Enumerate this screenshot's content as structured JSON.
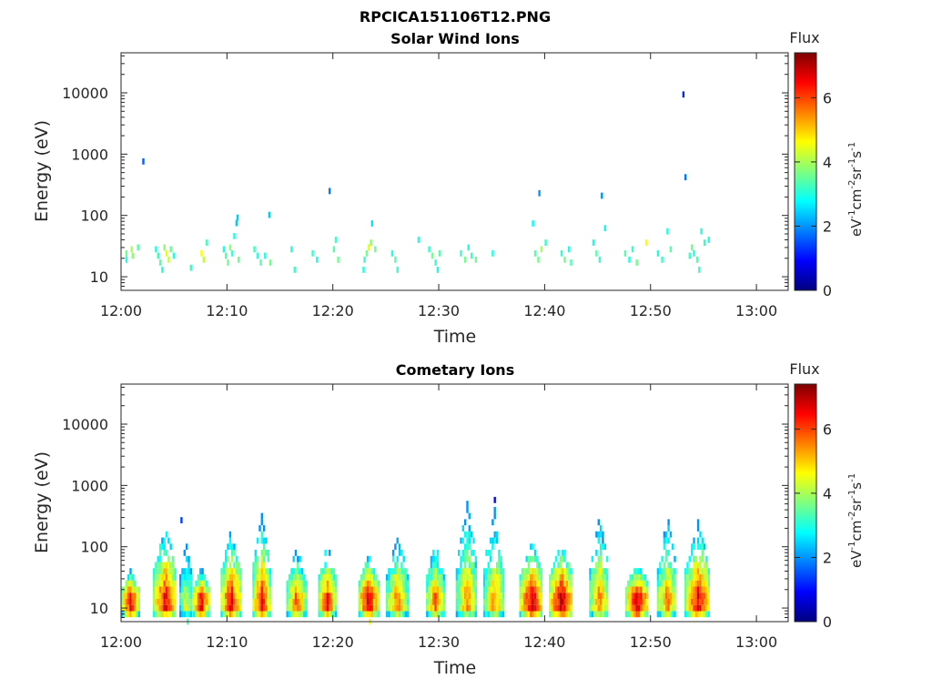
{
  "figure": {
    "title": "RPCICA151106T12.PNG"
  },
  "colormap": [
    "#00007f",
    "#0000ff",
    "#007fff",
    "#00ffff",
    "#7fff7f",
    "#ffff00",
    "#ff7f00",
    "#ff0000",
    "#7f0000"
  ],
  "chart_data": [
    {
      "type": "heatmap",
      "title": "Solar Wind Ions",
      "xlabel": "Time",
      "ylabel": "Energy (eV)",
      "x_ticks": [
        "12:00",
        "12:10",
        "12:20",
        "12:30",
        "12:40",
        "12:50",
        "13:00"
      ],
      "x_range": [
        "12:00",
        "13:03"
      ],
      "y_scale": "log",
      "y_ticks": [
        "10",
        "100",
        "1000",
        "10000"
      ],
      "y_range": [
        6,
        45000
      ],
      "colorbar": {
        "label": "Flux",
        "unit_base": "eV",
        "unit_e1": "-1",
        "unit_cm": "cm",
        "unit_e2": "-2",
        "unit_sr": "sr",
        "unit_e3": "-1",
        "unit_s": "s",
        "unit_e4": "-1",
        "ticks": [
          "0",
          "2",
          "4",
          "6"
        ],
        "range": [
          0,
          7.4
        ]
      },
      "cells": [
        [
          "12:00.4",
          24,
          3.6
        ],
        [
          "12:00.4",
          19,
          3.0
        ],
        [
          "12:00.9",
          28,
          4.0
        ],
        [
          "12:01.0",
          22,
          3.8
        ],
        [
          "12:01.5",
          30,
          3.4
        ],
        [
          "12:02.0",
          760,
          1.6
        ],
        [
          "12:03.2",
          28,
          3.0
        ],
        [
          "12:03.4",
          22,
          3.2
        ],
        [
          "12:03.6",
          17,
          3.4
        ],
        [
          "12:03.8",
          13,
          3.0
        ],
        [
          "12:04.0",
          30,
          3.8
        ],
        [
          "12:04.2",
          24,
          4.4
        ],
        [
          "12:04.4",
          19,
          4.2
        ],
        [
          "12:04.6",
          28,
          3.6
        ],
        [
          "12:04.9",
          22,
          3.0
        ],
        [
          "12:06.5",
          14,
          3.2
        ],
        [
          "12:07.5",
          24,
          4.6
        ],
        [
          "12:07.7",
          19,
          4.2
        ],
        [
          "12:08.0",
          36,
          3.2
        ],
        [
          "12:09.6",
          28,
          3.0
        ],
        [
          "12:09.8",
          22,
          3.4
        ],
        [
          "12:10.0",
          17,
          3.6
        ],
        [
          "12:10.2",
          30,
          3.8
        ],
        [
          "12:10.4",
          24,
          3.2
        ],
        [
          "12:10.6",
          46,
          3.0
        ],
        [
          "12:10.8",
          75,
          2.4
        ],
        [
          "12:11.0",
          19,
          3.6
        ],
        [
          "12:10.9",
          92,
          2.4
        ],
        [
          "12:12.5",
          28,
          3.2
        ],
        [
          "12:12.8",
          22,
          3.0
        ],
        [
          "12:13.1",
          17,
          3.4
        ],
        [
          "12:13.5",
          22,
          3.0
        ],
        [
          "12:13.9",
          102,
          2.4
        ],
        [
          "12:14.0",
          17,
          3.6
        ],
        [
          "12:16.0",
          28,
          3.0
        ],
        [
          "12:16.3",
          13,
          3.2
        ],
        [
          "12:18.0",
          24,
          3.2
        ],
        [
          "12:18.4",
          19,
          3.0
        ],
        [
          "12:19.6",
          250,
          1.8
        ],
        [
          "12:20.0",
          28,
          3.4
        ],
        [
          "12:20.2",
          40,
          3.2
        ],
        [
          "12:20.4",
          19,
          3.6
        ],
        [
          "12:22.9",
          19,
          3.2
        ],
        [
          "12:23.1",
          24,
          3.6
        ],
        [
          "12:23.3",
          30,
          4.4
        ],
        [
          "12:23.5",
          36,
          3.8
        ],
        [
          "12:23.6",
          74,
          2.6
        ],
        [
          "12:23.9",
          28,
          3.6
        ],
        [
          "12:22.8",
          13,
          3.0
        ],
        [
          "12:25.5",
          24,
          3.0
        ],
        [
          "12:25.8",
          19,
          3.4
        ],
        [
          "12:26.0",
          13,
          3.2
        ],
        [
          "12:28.0",
          40,
          3.0
        ],
        [
          "12:29.0",
          28,
          3.2
        ],
        [
          "12:29.3",
          22,
          3.6
        ],
        [
          "12:29.6",
          17,
          3.2
        ],
        [
          "12:29.8",
          13,
          3.0
        ],
        [
          "12:30.0",
          24,
          3.4
        ],
        [
          "12:32.0",
          24,
          3.2
        ],
        [
          "12:32.4",
          19,
          3.6
        ],
        [
          "12:32.7",
          30,
          3.0
        ],
        [
          "12:33.0",
          22,
          3.2
        ],
        [
          "12:33.4",
          19,
          3.6
        ],
        [
          "12:35.0",
          24,
          3.0
        ],
        [
          "12:38.8",
          74,
          2.8
        ],
        [
          "12:39.0",
          24,
          3.4
        ],
        [
          "12:39.3",
          19,
          3.6
        ],
        [
          "12:39.6",
          28,
          4.0
        ],
        [
          "12:40.0",
          36,
          3.2
        ],
        [
          "12:39.4",
          230,
          2.0
        ],
        [
          "12:41.5",
          24,
          3.2
        ],
        [
          "12:41.8",
          19,
          3.6
        ],
        [
          "12:42.2",
          28,
          3.0
        ],
        [
          "12:42.4",
          17,
          3.4
        ],
        [
          "12:44.5",
          36,
          3.0
        ],
        [
          "12:44.8",
          24,
          3.4
        ],
        [
          "12:45.1",
          19,
          3.2
        ],
        [
          "12:45.3",
          210,
          2.0
        ],
        [
          "12:45.6",
          62,
          2.8
        ],
        [
          "12:47.5",
          24,
          3.4
        ],
        [
          "12:47.9",
          19,
          3.0
        ],
        [
          "12:48.2",
          28,
          3.2
        ],
        [
          "12:48.6",
          17,
          3.6
        ],
        [
          "12:49.5",
          36,
          4.6
        ],
        [
          "12:50.6",
          24,
          3.0
        ],
        [
          "12:51.0",
          19,
          3.2
        ],
        [
          "12:51.5",
          55,
          3.0
        ],
        [
          "12:51.8",
          28,
          3.4
        ],
        [
          "12:53.0",
          9400,
          1.2
        ],
        [
          "12:53.2",
          420,
          1.8
        ],
        [
          "12:53.6",
          22,
          3.2
        ],
        [
          "12:53.8",
          30,
          3.6
        ],
        [
          "12:54.0",
          24,
          3.0
        ],
        [
          "12:54.3",
          19,
          3.4
        ],
        [
          "12:54.5",
          13,
          3.2
        ],
        [
          "12:54.7",
          55,
          3.0
        ],
        [
          "12:55.0",
          36,
          3.2
        ],
        [
          "12:55.4",
          40,
          3.0
        ]
      ]
    },
    {
      "type": "heatmap",
      "title": "Cometary Ions",
      "xlabel": "Time",
      "ylabel": "Energy (eV)",
      "x_ticks": [
        "12:00",
        "12:10",
        "12:20",
        "12:30",
        "12:40",
        "12:50",
        "13:00"
      ],
      "x_range": [
        "12:00",
        "13:03"
      ],
      "y_scale": "log",
      "y_ticks": [
        "10",
        "100",
        "1000",
        "10000"
      ],
      "y_range": [
        6,
        45000
      ],
      "colorbar": {
        "label": "Flux",
        "unit_base": "eV",
        "unit_e1": "-1",
        "unit_cm": "cm",
        "unit_e2": "-2",
        "unit_sr": "sr",
        "unit_e3": "-1",
        "unit_s": "s",
        "unit_e4": "-1",
        "ticks": [
          "0",
          "2",
          "4",
          "6"
        ],
        "range": [
          0,
          7.4
        ]
      },
      "bursts": [
        {
          "start": "12:00.0",
          "end": "12:01.6",
          "peak": 6.4,
          "top": 45
        },
        {
          "start": "12:03.0",
          "end": "12:05.2",
          "peak": 6.6,
          "top": 230
        },
        {
          "start": "12:05.5",
          "end": "12:06.6",
          "peak": 4.4,
          "top": 140
        },
        {
          "start": "12:06.8",
          "end": "12:08.2",
          "peak": 6.6,
          "top": 45
        },
        {
          "start": "12:09.4",
          "end": "12:11.2",
          "peak": 6.6,
          "top": 200
        },
        {
          "start": "12:12.4",
          "end": "12:14.0",
          "peak": 6.4,
          "top": 320
        },
        {
          "start": "12:15.6",
          "end": "12:17.4",
          "peak": 5.8,
          "top": 95
        },
        {
          "start": "12:18.6",
          "end": "12:20.2",
          "peak": 6.2,
          "top": 120
        },
        {
          "start": "12:22.4",
          "end": "12:24.2",
          "peak": 6.8,
          "top": 90
        },
        {
          "start": "12:25.0",
          "end": "12:27.0",
          "peak": 5.6,
          "top": 160
        },
        {
          "start": "12:28.8",
          "end": "12:30.4",
          "peak": 5.8,
          "top": 130
        },
        {
          "start": "12:31.6",
          "end": "12:33.6",
          "peak": 5.4,
          "top": 560
        },
        {
          "start": "12:34.2",
          "end": "12:36.2",
          "peak": 5.4,
          "top": 400
        },
        {
          "start": "12:37.6",
          "end": "12:39.8",
          "peak": 6.8,
          "top": 150
        },
        {
          "start": "12:40.4",
          "end": "12:42.6",
          "peak": 7.0,
          "top": 130
        },
        {
          "start": "12:44.2",
          "end": "12:46.0",
          "peak": 5.6,
          "top": 340
        },
        {
          "start": "12:47.6",
          "end": "12:49.8",
          "peak": 6.8,
          "top": 60
        },
        {
          "start": "12:50.6",
          "end": "12:52.4",
          "peak": 5.6,
          "top": 330
        },
        {
          "start": "12:53.2",
          "end": "12:55.6",
          "peak": 6.6,
          "top": 260
        }
      ],
      "markers": [
        [
          "12:05.6",
          270,
          1.4
        ],
        [
          "12:35.2",
          580,
          1.0
        ],
        [
          "12:23.4",
          6,
          4.6
        ],
        [
          "12:06.2",
          6,
          3.4
        ]
      ]
    }
  ]
}
